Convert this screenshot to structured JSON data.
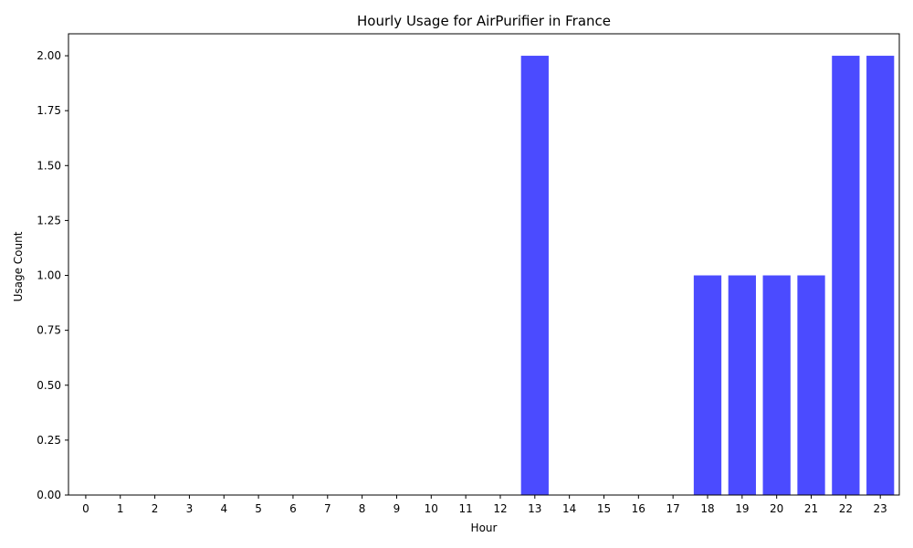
{
  "chart_data": {
    "type": "bar",
    "title": "Hourly Usage for AirPurifier in France",
    "xlabel": "Hour",
    "ylabel": "Usage Count",
    "categories": [
      "0",
      "1",
      "2",
      "3",
      "4",
      "5",
      "6",
      "7",
      "8",
      "9",
      "10",
      "11",
      "12",
      "13",
      "14",
      "15",
      "16",
      "17",
      "18",
      "19",
      "20",
      "21",
      "22",
      "23"
    ],
    "values": [
      0,
      0,
      0,
      0,
      0,
      0,
      0,
      0,
      0,
      0,
      0,
      0,
      0,
      2,
      0,
      0,
      0,
      0,
      1,
      1,
      1,
      1,
      2,
      2
    ],
    "ylim": [
      0,
      2.1
    ],
    "yticks": [
      "0.00",
      "0.25",
      "0.50",
      "0.75",
      "1.00",
      "1.25",
      "1.50",
      "1.75",
      "2.00"
    ],
    "grid": false,
    "bar_color": "#4b4bff"
  }
}
